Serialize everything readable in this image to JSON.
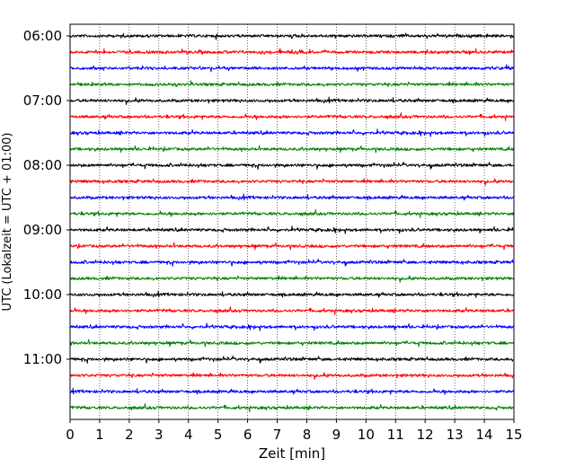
{
  "chart_data": {
    "type": "line",
    "title": "",
    "xlabel": "Zeit  [min]",
    "ylabel": "UTC (Lokalzeit = UTC + 01:00)",
    "xlim": [
      0,
      15
    ],
    "x_ticks": [
      "0",
      "1",
      "2",
      "3",
      "4",
      "5",
      "6",
      "7",
      "8",
      "9",
      "10",
      "11",
      "12",
      "13",
      "14",
      "15"
    ],
    "y_ticks": [
      "06:00",
      "07:00",
      "08:00",
      "09:00",
      "10:00",
      "11:00"
    ],
    "grid": "vertical dotted lines at each minute",
    "trace_colors_cycle": [
      "#000000",
      "#ff0000",
      "#0000ff",
      "#008000"
    ],
    "traces": [
      {
        "start": "06:00"
      },
      {
        "start": "06:15"
      },
      {
        "start": "06:30"
      },
      {
        "start": "06:45"
      },
      {
        "start": "07:00"
      },
      {
        "start": "07:15"
      },
      {
        "start": "07:30"
      },
      {
        "start": "07:45"
      },
      {
        "start": "08:00"
      },
      {
        "start": "08:15"
      },
      {
        "start": "08:30"
      },
      {
        "start": "08:45"
      },
      {
        "start": "09:00"
      },
      {
        "start": "09:15"
      },
      {
        "start": "09:30"
      },
      {
        "start": "09:45"
      },
      {
        "start": "10:00"
      },
      {
        "start": "10:15"
      },
      {
        "start": "10:30"
      },
      {
        "start": "10:45"
      },
      {
        "start": "11:00"
      },
      {
        "start": "11:15"
      },
      {
        "start": "11:30"
      },
      {
        "start": "11:45"
      }
    ]
  }
}
